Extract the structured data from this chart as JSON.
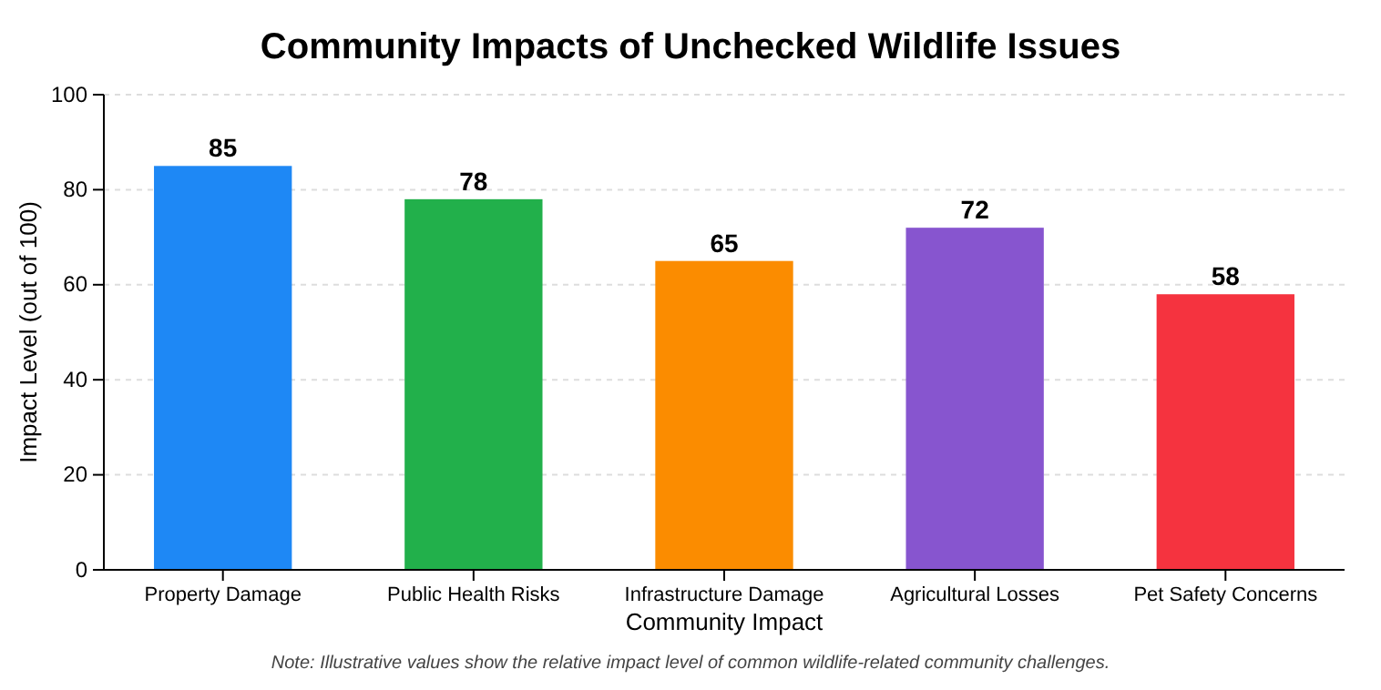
{
  "chart_data": {
    "type": "bar",
    "title": "Community Impacts of Unchecked Wildlife Issues",
    "xlabel": "Community Impact",
    "ylabel": "Impact Level (out of 100)",
    "categories": [
      "Property Damage",
      "Public Health Risks",
      "Infrastructure Damage",
      "Agricultural Losses",
      "Pet Safety Concerns"
    ],
    "values": [
      85,
      78,
      65,
      72,
      58
    ],
    "colors": [
      "#1e88f5",
      "#22b04b",
      "#fb8c00",
      "#8755cf",
      "#f5333f"
    ],
    "ylim": [
      0,
      100
    ],
    "yticks": [
      0,
      20,
      40,
      60,
      80,
      100
    ],
    "grid": "y",
    "data_labels": true,
    "annotations": [
      "Note: Illustrative values show the relative impact level of common wildlife-related community challenges."
    ]
  }
}
